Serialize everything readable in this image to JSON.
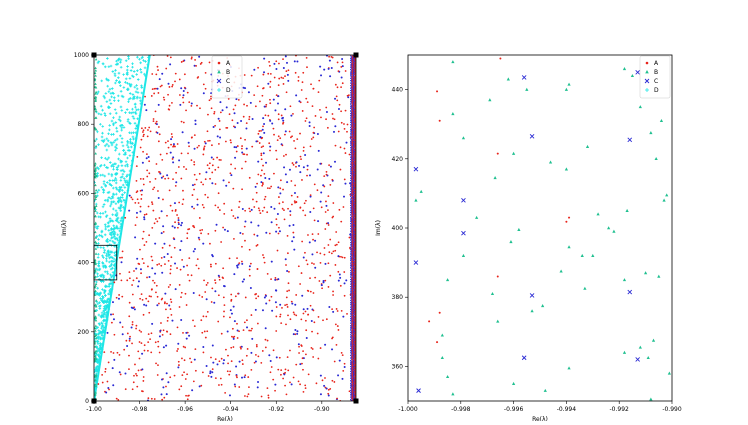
{
  "chart_data": [
    {
      "type": "scatter",
      "xlabel": "Re(λ)",
      "ylabel": "Im(λ)",
      "xlim": [
        -1.0,
        -0.885
      ],
      "ylim": [
        0,
        1000
      ],
      "xticks": [
        "-1.00",
        "-0.98",
        "-0.96",
        "-0.94",
        "-0.92",
        "-0.90"
      ],
      "xtick_values": [
        -1.0,
        -0.98,
        -0.96,
        -0.94,
        -0.92,
        -0.9
      ],
      "yticks": [
        "0",
        "200",
        "400",
        "600",
        "800",
        "1000"
      ],
      "ytick_values": [
        0,
        200,
        400,
        600,
        800,
        1000
      ],
      "legend_position": "top-right",
      "series": [
        {
          "name": "A",
          "marker": "dot",
          "color": "#e8231a",
          "description": "dense red eigenvalue points filling the region right of the cyan wedge",
          "regions": [
            [
              -0.975,
              -0.886,
              0,
              1000
            ]
          ]
        },
        {
          "name": "B",
          "marker": "triangle",
          "color": "#20c090",
          "description": "small green triangles along the left boundary"
        },
        {
          "name": "C",
          "marker": "x",
          "color": "#2a2ad4",
          "description": "blue points interleaved with A; dense column near Re = -0.886"
        },
        {
          "name": "D",
          "marker": "plus",
          "color": "#1ee6e6",
          "description": "cyan wedge from Re=-1.00 at Im=0 widening to Re=-0.975 at Im=1000",
          "wedge": {
            "bottom": [
              -1.0,
              0
            ],
            "top_left": [
              -1.0,
              1000
            ],
            "top_right": [
              -0.9755,
              1000
            ]
          }
        }
      ],
      "inset_box": {
        "x": [
          -1.0,
          -0.99
        ],
        "y": [
          350,
          450
        ]
      }
    },
    {
      "type": "scatter",
      "xlabel": "Re(λ)",
      "ylabel": "Im(λ)",
      "xlim": [
        -1.0,
        -0.99
      ],
      "ylim": [
        350,
        450
      ],
      "xticks": [
        "-1.000",
        "-0.998",
        "-0.996",
        "-0.994",
        "-0.992",
        "-0.990"
      ],
      "xtick_values": [
        -1.0,
        -0.998,
        -0.996,
        -0.994,
        -0.992,
        -0.99
      ],
      "yticks": [
        "360",
        "380",
        "400",
        "420",
        "440"
      ],
      "ytick_values": [
        360,
        380,
        400,
        420,
        440
      ],
      "legend_position": "top-right",
      "series": [
        {
          "name": "A",
          "marker": "dot",
          "color": "#e8231a",
          "points": [
            [
              -0.9989,
              439.5
            ],
            [
              -0.9965,
              449.0
            ],
            [
              -0.9988,
              431.0
            ],
            [
              -0.9966,
              421.5
            ],
            [
              -0.9939,
              403.0
            ],
            [
              -0.994,
              401.8
            ],
            [
              -0.9966,
              386.0
            ],
            [
              -0.9988,
              375.5
            ],
            [
              -0.9989,
              367.0
            ],
            [
              -0.9992,
              373.0
            ]
          ]
        },
        {
          "name": "B",
          "marker": "triangle",
          "color": "#20c090",
          "points": [
            [
              -0.9983,
              448.0
            ],
            [
              -0.9969,
              437.0
            ],
            [
              -0.9962,
              443.0
            ],
            [
              -0.9955,
              440.0
            ],
            [
              -0.9939,
              441.5
            ],
            [
              -0.994,
              440.0
            ],
            [
              -0.9918,
              446.0
            ],
            [
              -0.9915,
              444.0
            ],
            [
              -0.9912,
              435.0
            ],
            [
              -0.9908,
              427.5
            ],
            [
              -0.9904,
              431.0
            ],
            [
              -0.9983,
              433.0
            ],
            [
              -0.9979,
              426.0
            ],
            [
              -0.996,
              421.5
            ],
            [
              -0.9946,
              419.0
            ],
            [
              -0.994,
              417.0
            ],
            [
              -0.9932,
              423.5
            ],
            [
              -0.9906,
              420.0
            ],
            [
              -0.9995,
              410.5
            ],
            [
              -0.9997,
              408.0
            ],
            [
              -0.9967,
              414.5
            ],
            [
              -0.9974,
              403.0
            ],
            [
              -0.9958,
              399.5
            ],
            [
              -0.9961,
              396.0
            ],
            [
              -0.9939,
              394.5
            ],
            [
              -0.9934,
              392.0
            ],
            [
              -0.9928,
              404.0
            ],
            [
              -0.9922,
              399.0
            ],
            [
              -0.9917,
              405.0
            ],
            [
              -0.991,
              387.0
            ],
            [
              -0.9905,
              386.0
            ],
            [
              -0.9903,
              408.0
            ],
            [
              -0.9902,
              409.5
            ],
            [
              -0.9979,
              392.0
            ],
            [
              -0.9985,
              385.0
            ],
            [
              -0.9968,
              381.0
            ],
            [
              -0.9953,
              376.0
            ],
            [
              -0.9949,
              377.5
            ],
            [
              -0.9942,
              387.5
            ],
            [
              -0.9933,
              382.5
            ],
            [
              -0.9918,
              385.0
            ],
            [
              -0.993,
              392.0
            ],
            [
              -0.9924,
              400.0
            ],
            [
              -0.9987,
              369.0
            ],
            [
              -0.9987,
              362.5
            ],
            [
              -0.9966,
              373.0
            ],
            [
              -0.996,
              355.0
            ],
            [
              -0.9948,
              353.0
            ],
            [
              -0.9939,
              359.5
            ],
            [
              -0.9918,
              364.0
            ],
            [
              -0.9912,
              365.5
            ],
            [
              -0.9907,
              367.5
            ],
            [
              -0.9909,
              362.5
            ],
            [
              -0.9901,
              358.0
            ],
            [
              -0.9908,
              350.5
            ],
            [
              -0.9983,
              352.0
            ],
            [
              -0.9985,
              357.0
            ]
          ]
        },
        {
          "name": "C",
          "marker": "x",
          "color": "#2a2ad4",
          "points": [
            [
              -0.9997,
              417.0
            ],
            [
              -0.9956,
              443.5
            ],
            [
              -0.9953,
              426.5
            ],
            [
              -0.9913,
              445.0
            ],
            [
              -0.9916,
              425.5
            ],
            [
              -0.9979,
              408.0
            ],
            [
              -0.9979,
              398.5
            ],
            [
              -0.9997,
              390.0
            ],
            [
              -0.9953,
              380.5
            ],
            [
              -0.9916,
              381.5
            ],
            [
              -0.9956,
              362.5
            ],
            [
              -0.9913,
              362.0
            ],
            [
              -0.9996,
              353.0
            ]
          ]
        },
        {
          "name": "D",
          "marker": "plus",
          "color": "#1ee6e6",
          "points": []
        }
      ]
    }
  ]
}
